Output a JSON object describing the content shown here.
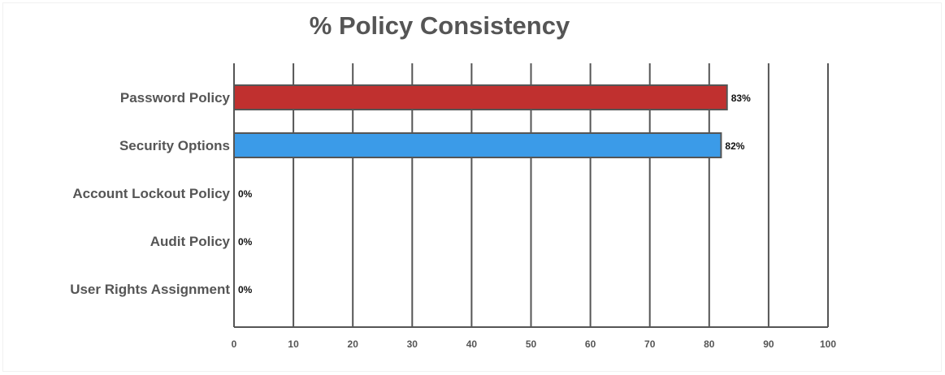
{
  "chart_data": {
    "type": "bar",
    "orientation": "horizontal",
    "title": "% Policy Consistency",
    "categories": [
      "Password Policy",
      "Security Options",
      "Account Lockout Policy",
      "Audit Policy",
      "User Rights Assignment"
    ],
    "values": [
      83,
      82,
      0,
      0,
      0
    ],
    "data_labels": [
      "83%",
      "82%",
      "0%",
      "0%",
      "0%"
    ],
    "bar_colors": [
      "#c0302f",
      "#3b9be8",
      "#3b9be8",
      "#3b9be8",
      "#3b9be8"
    ],
    "xlim": [
      0,
      100
    ],
    "xticks": [
      0,
      10,
      20,
      30,
      40,
      50,
      60,
      70,
      80,
      90,
      100
    ],
    "grid": true,
    "legend": "none",
    "xlabel": "",
    "ylabel": ""
  }
}
